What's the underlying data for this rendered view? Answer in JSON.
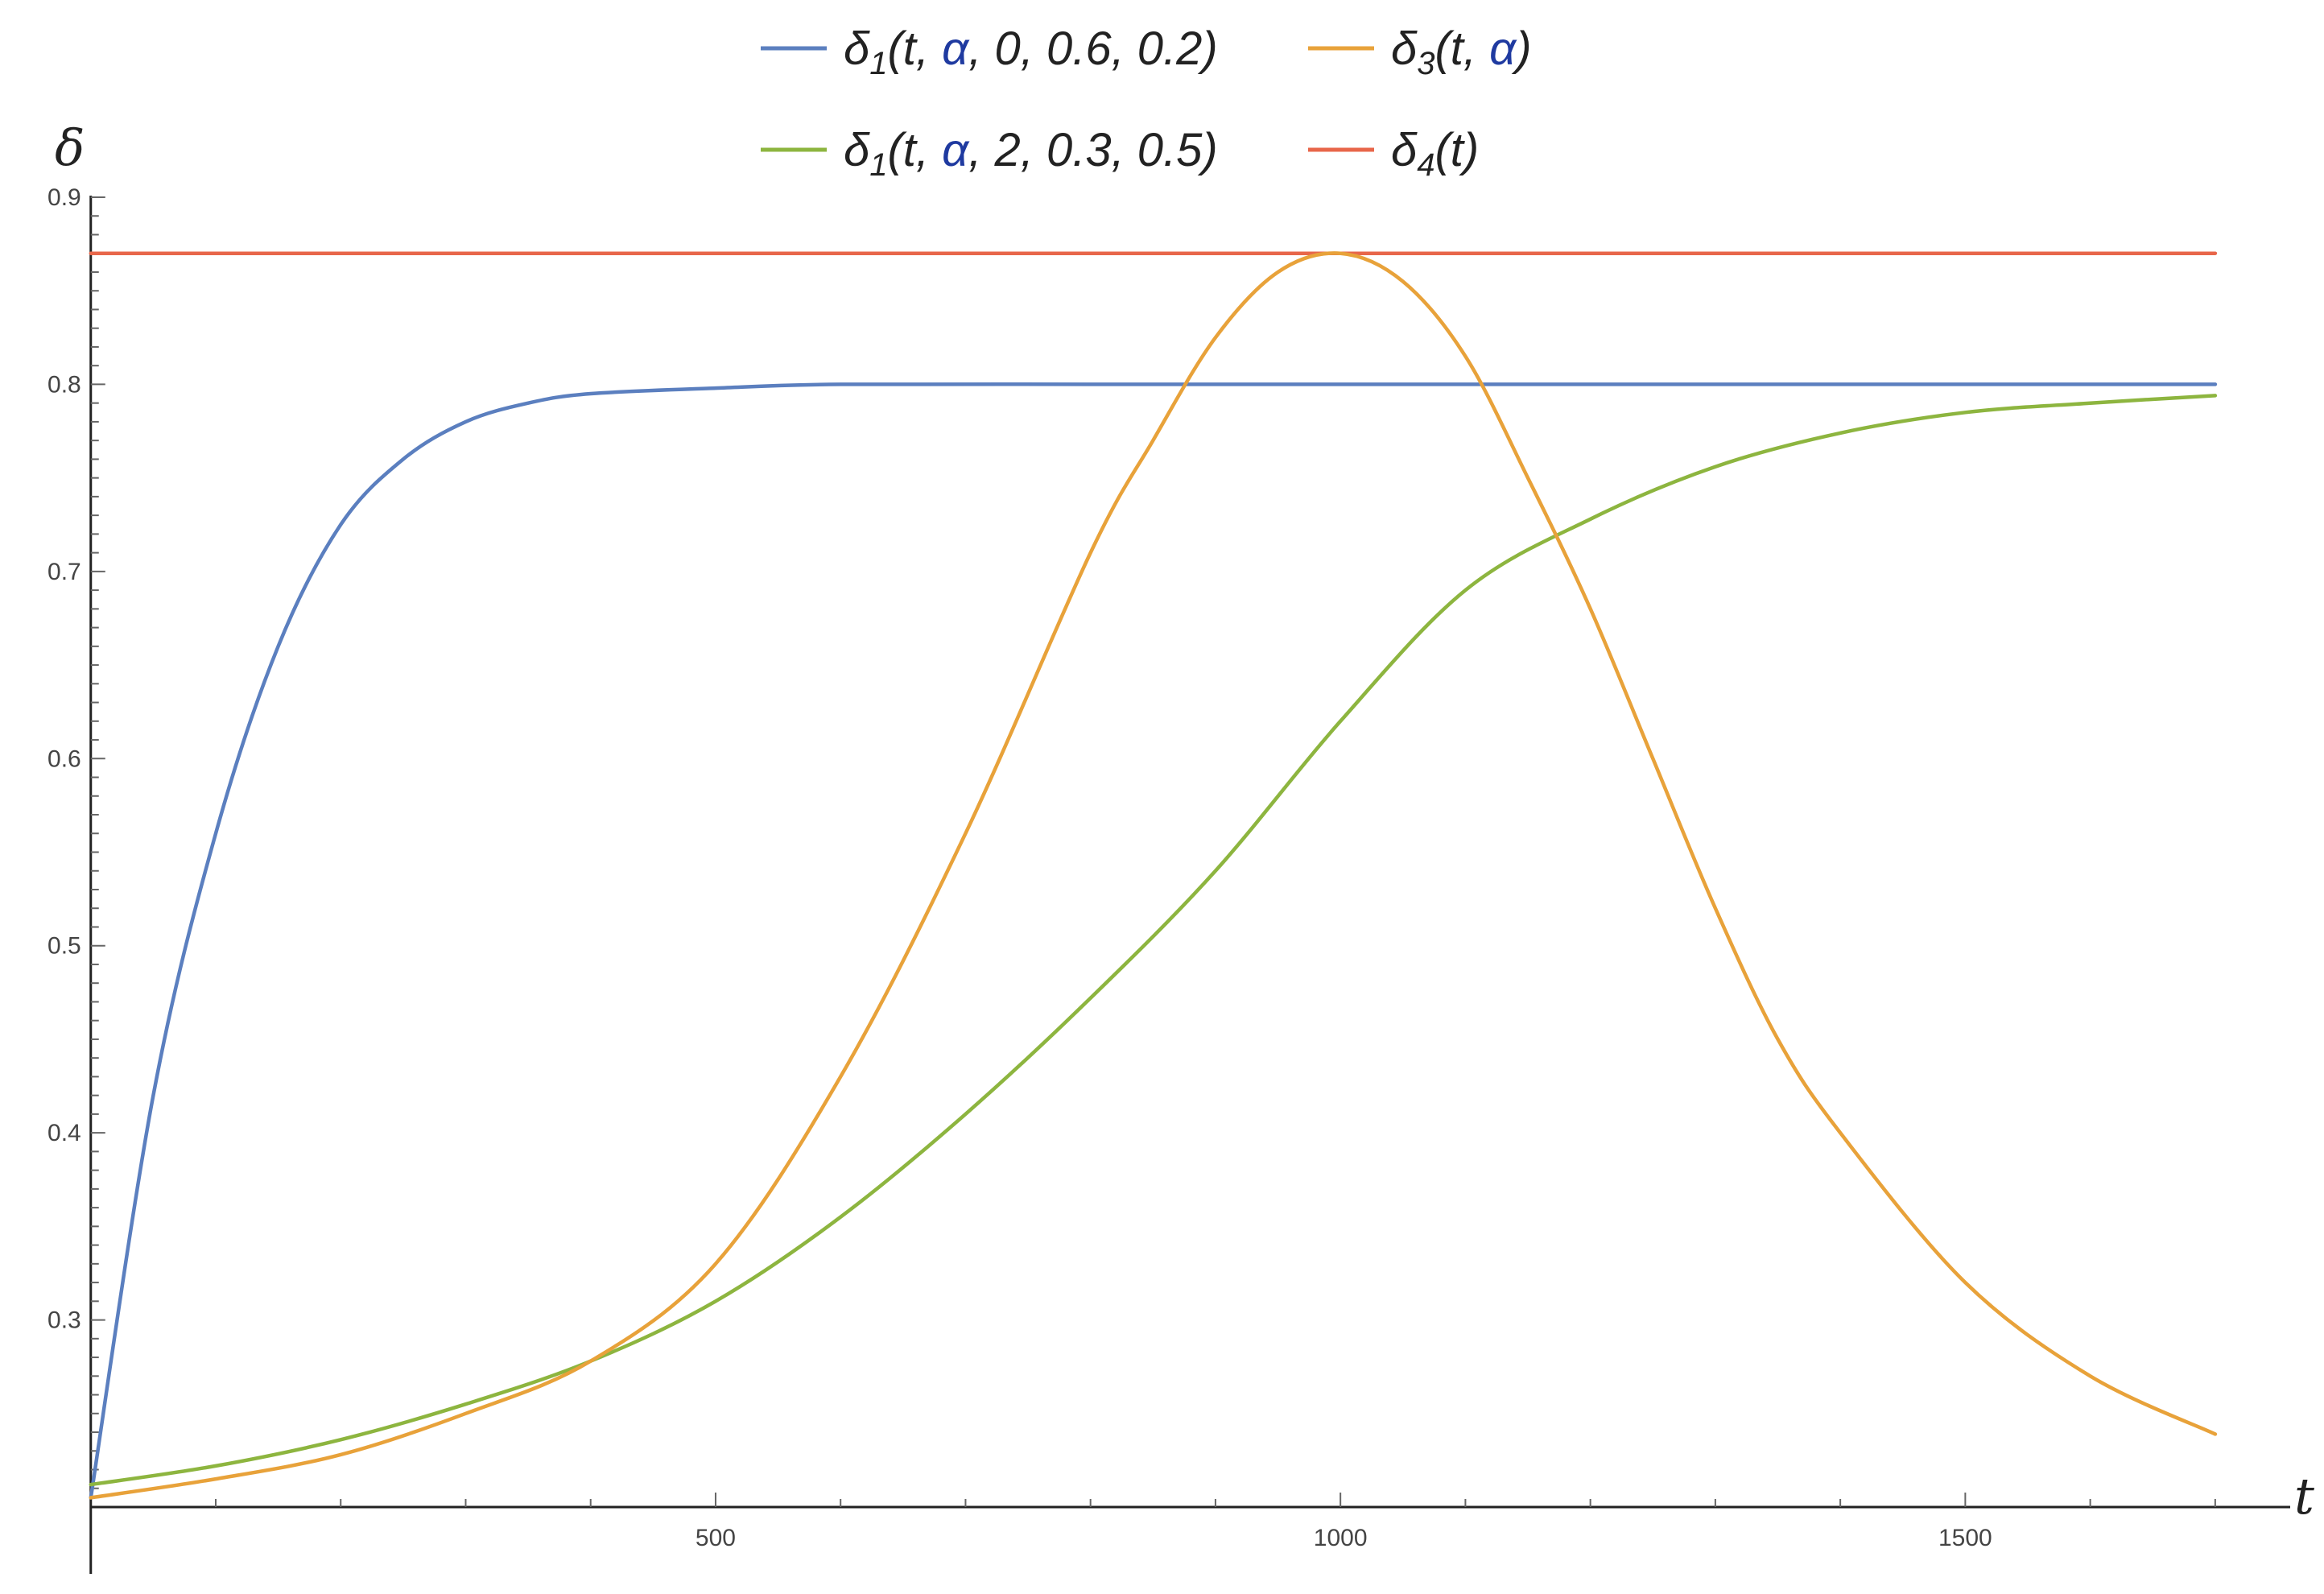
{
  "chart_data": {
    "type": "line",
    "title": "",
    "xlabel": "t",
    "ylabel": "δ",
    "xlim": [
      -5,
      1760
    ],
    "ylim": [
      0.2,
      0.9
    ],
    "x_ticks": [
      {
        "value": 500,
        "label": "500"
      },
      {
        "value": 1000,
        "label": "1000"
      },
      {
        "value": 1500,
        "label": "1500"
      }
    ],
    "y_ticks": [
      {
        "value": 0.3,
        "label": "0.3"
      },
      {
        "value": 0.4,
        "label": "0.4"
      },
      {
        "value": 0.5,
        "label": "0.5"
      },
      {
        "value": 0.6,
        "label": "0.6"
      },
      {
        "value": 0.7,
        "label": "0.7"
      },
      {
        "value": 0.8,
        "label": "0.8"
      },
      {
        "value": 0.9,
        "label": "0.9"
      }
    ],
    "grid": false,
    "legend_position": "top",
    "series": [
      {
        "name": "δ1(t, α, 0, 0.6, 0.2)",
        "legend": {
          "head": "δ",
          "sub": "1",
          "pre": "(t, ",
          "alpha": "α",
          "post": ", 0, 0.6, 0.2)"
        },
        "color": "#5b7fbf",
        "x": [
          0,
          50,
          100,
          150,
          200,
          250,
          300,
          350,
          400,
          500,
          600,
          800,
          1000,
          1200,
          1400,
          1700
        ],
        "y": [
          0.205,
          0.42,
          0.56,
          0.66,
          0.725,
          0.76,
          0.78,
          0.79,
          0.795,
          0.798,
          0.8,
          0.8,
          0.8,
          0.8,
          0.8,
          0.8
        ]
      },
      {
        "name": "δ3(t, α)",
        "legend": {
          "head": "δ",
          "sub": "3",
          "pre": "(t, ",
          "alpha": "α",
          "post": ")"
        },
        "color": "#e8a23a",
        "x": [
          0,
          100,
          200,
          300,
          400,
          500,
          600,
          700,
          800,
          850,
          900,
          950,
          1000,
          1050,
          1100,
          1150,
          1200,
          1250,
          1300,
          1350,
          1400,
          1500,
          1600,
          1700
        ],
        "y": [
          0.205,
          0.215,
          0.228,
          0.25,
          0.278,
          0.33,
          0.43,
          0.56,
          0.71,
          0.77,
          0.825,
          0.86,
          0.87,
          0.855,
          0.815,
          0.75,
          0.68,
          0.6,
          0.52,
          0.45,
          0.4,
          0.32,
          0.27,
          0.239
        ]
      },
      {
        "name": "δ1(t, α, 2, 0.3, 0.5)",
        "legend": {
          "head": "δ",
          "sub": "1",
          "pre": "(t, ",
          "alpha": "α",
          "post": ", 2, 0.3, 0.5)"
        },
        "color": "#8db53f",
        "x": [
          0,
          100,
          200,
          300,
          400,
          500,
          600,
          700,
          800,
          900,
          1000,
          1100,
          1200,
          1300,
          1400,
          1500,
          1600,
          1700
        ],
        "y": [
          0.212,
          0.222,
          0.236,
          0.255,
          0.278,
          0.31,
          0.355,
          0.41,
          0.472,
          0.54,
          0.62,
          0.69,
          0.728,
          0.756,
          0.774,
          0.785,
          0.79,
          0.794
        ]
      },
      {
        "name": "δ4(t)",
        "legend": {
          "head": "δ",
          "sub": "4",
          "pre": "(t)",
          "alpha": "",
          "post": ""
        },
        "color": "#e8664a",
        "x": [
          0,
          1700
        ],
        "y": [
          0.87,
          0.87
        ]
      }
    ]
  }
}
